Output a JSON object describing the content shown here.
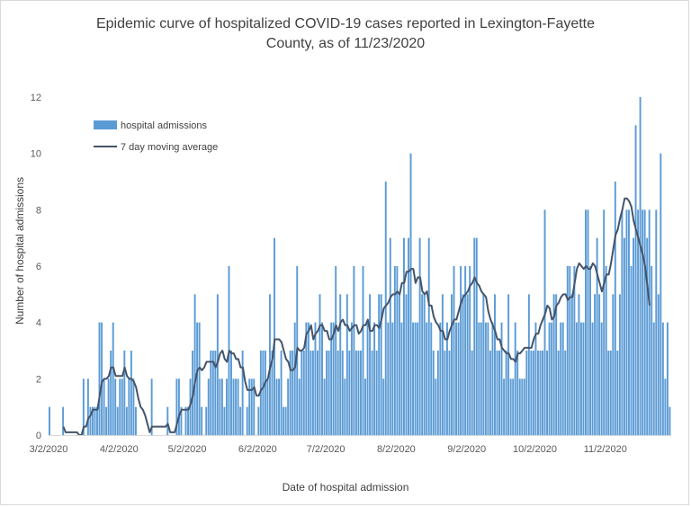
{
  "title_line1": "Epidemic curve of hospitalized COVID-19 cases reported in Lexington-Fayette",
  "title_line2": "County, as of 11/23/2020",
  "xlabel": "Date of hospital admission",
  "ylabel": "Number of hospital admissions",
  "colors": {
    "bar": "#5b9bd5",
    "line": "#44546a",
    "axis": "#d9d9d9"
  },
  "chart_data": {
    "type": "bar",
    "title": "Epidemic curve of hospitalized COVID-19 cases reported in Lexington-Fayette County, as of 11/23/2020",
    "xlabel": "Date of hospital admission",
    "ylabel": "Number of hospital admissions",
    "x_start": "3/2/2020",
    "x_end": "11/23/2020",
    "x_tick_labels": [
      "3/2/2020",
      "4/2/2020",
      "5/2/2020",
      "6/2/2020",
      "7/2/2020",
      "8/2/2020",
      "9/2/2020",
      "10/2/2020",
      "11/2/2020"
    ],
    "ylim": [
      0,
      12
    ],
    "y_ticks": [
      0,
      2,
      4,
      6,
      8,
      10,
      12
    ],
    "legend": [
      "hospital admissions",
      "7 day moving average"
    ],
    "legend_position": "top-left",
    "series": [
      {
        "name": "hospital admissions",
        "type": "bar",
        "values": [
          1,
          0,
          0,
          0,
          0,
          0,
          1,
          0,
          0,
          0,
          0,
          0,
          0,
          0,
          0,
          2,
          0,
          2,
          1,
          1,
          1,
          1,
          4,
          4,
          2,
          1,
          2,
          3,
          4,
          2,
          1,
          2,
          2,
          3,
          1,
          2,
          3,
          2,
          1,
          0,
          0,
          0,
          0,
          0,
          0,
          2,
          0,
          0,
          0,
          0,
          0,
          0,
          1,
          0,
          0,
          0,
          2,
          2,
          1,
          0,
          1,
          1,
          2,
          3,
          5,
          4,
          4,
          1,
          0,
          1,
          2,
          3,
          3,
          3,
          5,
          2,
          2,
          1,
          2,
          6,
          3,
          2,
          2,
          2,
          1,
          3,
          0,
          1,
          2,
          2,
          2,
          0,
          1,
          3,
          3,
          3,
          2,
          5,
          3,
          7,
          2,
          2,
          3,
          1,
          1,
          2,
          3,
          3,
          4,
          6,
          2,
          3,
          3,
          4,
          4,
          3,
          3,
          4,
          3,
          5,
          4,
          2,
          3,
          3,
          4,
          4,
          6,
          3,
          5,
          3,
          2,
          5,
          3,
          4,
          6,
          3,
          3,
          3,
          6,
          2,
          4,
          5,
          3,
          4,
          3,
          5,
          5,
          2,
          9,
          4,
          7,
          4,
          6,
          6,
          5,
          4,
          7,
          5,
          7,
          10,
          4,
          4,
          4,
          7,
          5,
          5,
          4,
          7,
          4,
          3,
          2,
          3,
          4,
          5,
          3,
          4,
          3,
          5,
          6,
          4,
          4,
          6,
          5,
          6,
          5,
          6,
          3,
          7,
          7,
          4,
          4,
          5,
          4,
          4,
          3,
          4,
          5,
          3,
          3,
          4,
          2,
          3,
          5,
          2,
          2,
          4,
          3,
          2,
          2,
          2,
          3,
          5,
          3,
          3,
          4,
          3,
          3,
          3,
          8,
          3,
          4,
          4,
          5,
          5,
          3,
          4,
          4,
          3,
          6,
          6,
          5,
          6,
          4,
          5,
          4,
          4,
          8,
          8,
          6,
          4,
          5,
          7,
          5,
          4,
          8,
          6,
          3,
          3,
          5,
          9,
          3,
          5,
          8,
          7,
          8,
          8,
          6,
          7,
          11,
          8,
          12,
          8,
          8,
          7,
          8,
          6,
          4,
          8,
          5,
          10,
          4,
          2,
          4,
          1
        ]
      },
      {
        "name": "7 day moving average",
        "type": "line",
        "values": [
          null,
          null,
          null,
          null,
          null,
          null,
          0.3,
          0.1,
          0.1,
          0.1,
          0.1,
          0.1,
          0.1,
          0.0,
          0.0,
          0.3,
          0.3,
          0.6,
          0.7,
          0.9,
          0.9,
          0.9,
          1.4,
          1.9,
          2.0,
          2.0,
          2.1,
          2.4,
          2.4,
          2.1,
          2.1,
          2.1,
          2.1,
          2.4,
          2.1,
          2.0,
          2.0,
          1.9,
          1.7,
          1.3,
          1.0,
          0.9,
          0.7,
          0.4,
          0.1,
          0.3,
          0.3,
          0.3,
          0.3,
          0.3,
          0.3,
          0.3,
          0.4,
          0.1,
          0.1,
          0.1,
          0.4,
          0.7,
          0.9,
          0.9,
          0.9,
          0.9,
          1.1,
          1.4,
          1.9,
          2.3,
          2.4,
          2.3,
          2.4,
          2.6,
          2.6,
          2.6,
          2.6,
          2.4,
          2.6,
          2.9,
          3.0,
          2.7,
          2.6,
          3.0,
          2.9,
          2.9,
          2.7,
          2.7,
          2.4,
          2.4,
          1.9,
          1.6,
          1.6,
          1.6,
          1.7,
          1.4,
          1.4,
          1.6,
          1.7,
          1.9,
          2.0,
          2.4,
          2.7,
          3.4,
          3.4,
          3.4,
          3.3,
          3.0,
          2.7,
          2.6,
          2.3,
          2.3,
          2.4,
          3.1,
          3.0,
          3.0,
          3.1,
          3.6,
          3.7,
          3.9,
          3.4,
          3.6,
          3.7,
          3.9,
          3.9,
          3.7,
          3.7,
          3.4,
          3.4,
          3.6,
          3.9,
          3.7,
          4.0,
          4.1,
          3.9,
          3.9,
          3.7,
          3.8,
          3.9,
          3.9,
          3.6,
          3.7,
          3.9,
          3.9,
          4.1,
          3.7,
          3.7,
          3.9,
          3.9,
          3.8,
          4.1,
          4.5,
          4.6,
          4.7,
          4.9,
          5.0,
          5.0,
          5.1,
          5.0,
          5.4,
          5.4,
          5.8,
          5.8,
          5.9,
          5.9,
          5.4,
          5.6,
          5.6,
          5.1,
          5.0,
          5.1,
          4.6,
          4.6,
          4.2,
          4.0,
          3.9,
          3.7,
          3.7,
          3.4,
          3.4,
          3.7,
          3.9,
          4.1,
          4.1,
          4.4,
          4.7,
          4.9,
          5.0,
          5.1,
          5.3,
          5.4,
          5.6,
          5.4,
          5.3,
          5.1,
          5.0,
          4.9,
          4.4,
          4.1,
          3.9,
          3.7,
          3.4,
          3.4,
          3.1,
          3.0,
          2.9,
          2.9,
          2.7,
          2.7,
          2.6,
          2.9,
          2.9,
          3.0,
          3.1,
          3.1,
          3.1,
          3.1,
          3.4,
          3.6,
          3.6,
          3.9,
          4.1,
          4.3,
          4.6,
          4.5,
          4.1,
          4.2,
          4.6,
          4.7,
          4.9,
          5.0,
          5.0,
          4.8,
          4.9,
          4.9,
          5.4,
          5.9,
          6.1,
          6.0,
          5.9,
          6.0,
          5.9,
          5.9,
          6.1,
          6.0,
          5.7,
          5.4,
          5.1,
          5.4,
          5.7,
          5.7,
          6.1,
          6.6,
          7.1,
          7.3,
          7.7,
          8.0,
          8.4,
          8.4,
          8.3,
          8.1,
          7.6,
          7.3,
          7.0,
          6.7,
          6.4,
          6.0,
          5.3,
          4.6
        ]
      }
    ]
  }
}
